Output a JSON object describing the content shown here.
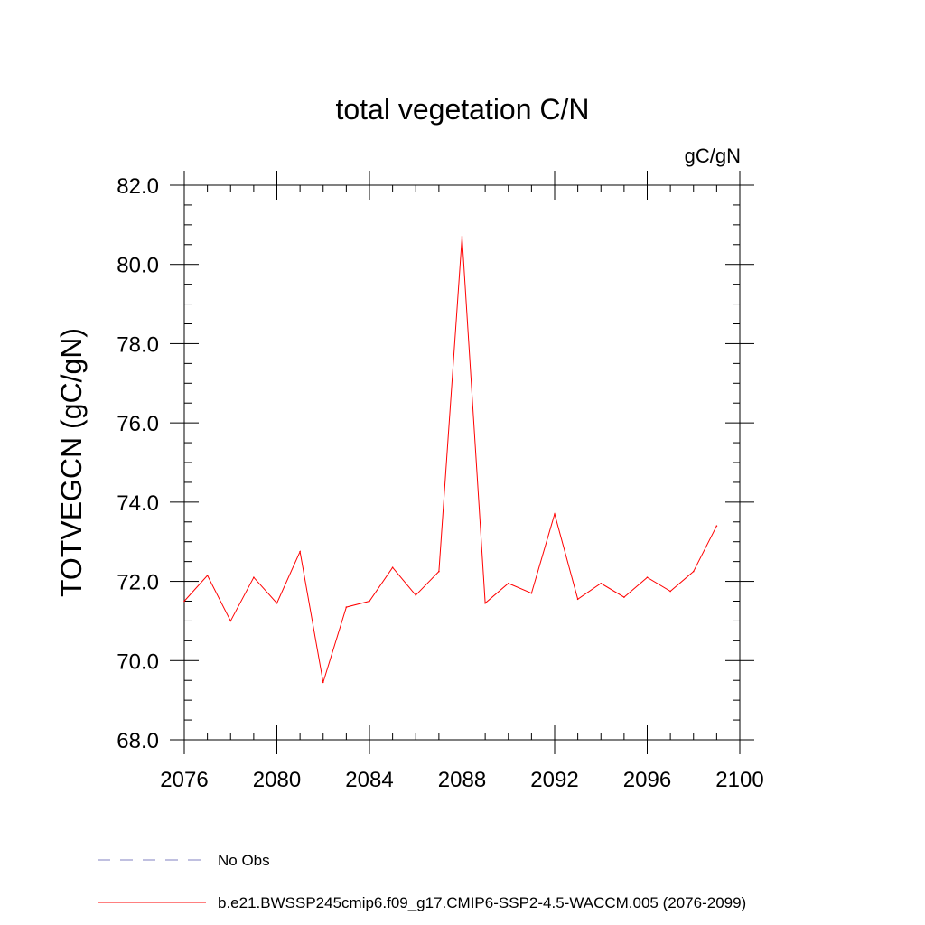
{
  "chart_data": {
    "type": "line",
    "title": "total vegetation C/N",
    "units_label": "gC/gN",
    "ylabel": "TOTVEGCN  (gC/gN)",
    "xlabel": "",
    "xlim": [
      2076,
      2100
    ],
    "ylim": [
      68.0,
      82.0
    ],
    "x_ticks": [
      2076,
      2080,
      2084,
      2088,
      2092,
      2096,
      2100
    ],
    "x_tick_labels": [
      "2076",
      "2080",
      "2084",
      "2088",
      "2092",
      "2096",
      "2100"
    ],
    "y_ticks": [
      68.0,
      70.0,
      72.0,
      74.0,
      76.0,
      78.0,
      80.0,
      82.0
    ],
    "y_tick_labels": [
      "68.0",
      "70.0",
      "72.0",
      "74.0",
      "76.0",
      "78.0",
      "80.0",
      "82.0"
    ],
    "grid": false,
    "legend": [
      {
        "label": "No Obs",
        "style": "dashed",
        "color": "#8080c0"
      },
      {
        "label": "b.e21.BWSSP245cmip6.f09_g17.CMIP6-SSP2-4.5-WACCM.005 (2076-2099)",
        "style": "solid",
        "color": "#ff0000"
      }
    ],
    "series": [
      {
        "name": "b.e21.BWSSP245cmip6.f09_g17.CMIP6-SSP2-4.5-WACCM.005 (2076-2099)",
        "color": "#ff0000",
        "x": [
          2076,
          2077,
          2078,
          2079,
          2080,
          2081,
          2082,
          2083,
          2084,
          2085,
          2086,
          2087,
          2088,
          2089,
          2090,
          2091,
          2092,
          2093,
          2094,
          2095,
          2096,
          2097,
          2098,
          2099
        ],
        "values": [
          71.5,
          72.15,
          71.0,
          72.1,
          71.45,
          72.75,
          69.45,
          71.35,
          71.5,
          72.35,
          71.65,
          72.25,
          80.7,
          71.45,
          71.95,
          71.7,
          73.7,
          71.55,
          71.95,
          71.6,
          72.1,
          71.75,
          72.25,
          73.4
        ]
      }
    ]
  }
}
